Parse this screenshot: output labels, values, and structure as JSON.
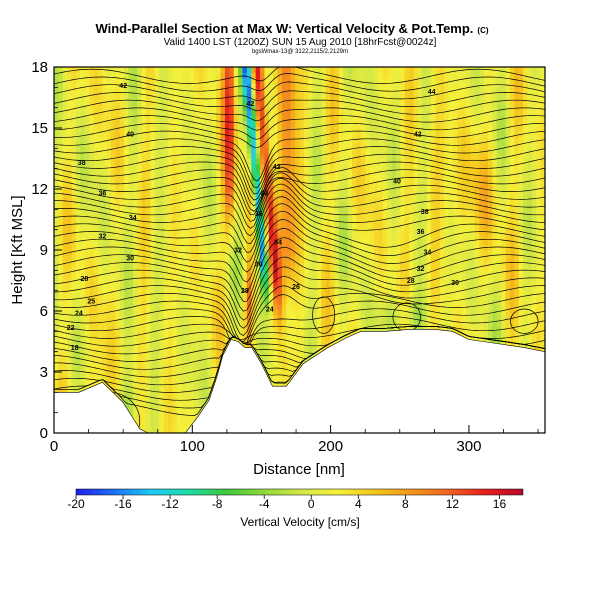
{
  "chart_data": {
    "type": "heatmap",
    "title": "Wind-Parallel Section at Max W: Vertical Velocity & Pot.Temp.",
    "title_mark": "(C)",
    "subtitle": "Valid 1400 LST (1200Z) SUN 15 Aug 2010 [18hrFcst@0024z]",
    "subtitle2": "bgsWmax-13@ 3122,2115/2,2129m",
    "xlabel": "Distance [nm]",
    "ylabel": "Height [Kft MSL]",
    "xlim": [
      0,
      355
    ],
    "ylim": [
      0,
      18
    ],
    "x_ticks": [
      "0",
      "100",
      "200",
      "300"
    ],
    "x_tick_values": [
      0,
      100,
      200,
      300
    ],
    "y_ticks": [
      "0",
      "3",
      "6",
      "9",
      "12",
      "15",
      "18"
    ],
    "y_tick_values": [
      0,
      3,
      6,
      9,
      12,
      15,
      18
    ],
    "colorbar": {
      "label": "Vertical Velocity [cm/s]",
      "min": -20,
      "max": 18,
      "tick_labels": [
        "-20",
        "-16",
        "-12",
        "-8",
        "-4",
        "0",
        "4",
        "8",
        "12",
        "16"
      ],
      "tick_values": [
        -20,
        -16,
        -12,
        -8,
        -4,
        0,
        4,
        8,
        12,
        16
      ],
      "colors": [
        "#1e1ee6",
        "#1e6ef5",
        "#1ec8f5",
        "#1edcaa",
        "#3cc83c",
        "#8cd73c",
        "#d2e646",
        "#f5f03c",
        "#f5c81e",
        "#f5961e",
        "#f0641e",
        "#e61e1e",
        "#b40a2d"
      ]
    },
    "terrain_kft": [
      [
        0,
        2
      ],
      [
        18,
        2
      ],
      [
        35,
        2.5
      ],
      [
        50,
        1.5
      ],
      [
        62,
        0.2
      ],
      [
        68,
        0
      ],
      [
        95,
        0
      ],
      [
        104,
        0.8
      ],
      [
        112,
        1.6
      ],
      [
        118,
        2.8
      ],
      [
        122,
        3.8
      ],
      [
        128,
        4.6
      ],
      [
        133,
        4.5
      ],
      [
        138,
        4.2
      ],
      [
        143,
        4.2
      ],
      [
        150,
        3.4
      ],
      [
        158,
        2.3
      ],
      [
        168,
        2.3
      ],
      [
        180,
        3.4
      ],
      [
        198,
        4.2
      ],
      [
        212,
        4.7
      ],
      [
        222,
        5.0
      ],
      [
        240,
        5.0
      ],
      [
        258,
        5.1
      ],
      [
        275,
        5.1
      ],
      [
        288,
        5.0
      ],
      [
        300,
        4.6
      ],
      [
        320,
        4.4
      ],
      [
        340,
        4.2
      ],
      [
        355,
        4.0
      ]
    ],
    "theta_contours": [
      {
        "label": "18",
        "x": 15,
        "y": 4.2
      },
      {
        "label": "22",
        "x": 12,
        "y": 5.2
      },
      {
        "label": "24",
        "x": 18,
        "y": 5.9
      },
      {
        "label": "25",
        "x": 27,
        "y": 6.5
      },
      {
        "label": "28",
        "x": 22,
        "y": 7.6
      },
      {
        "label": "30",
        "x": 55,
        "y": 8.6
      },
      {
        "label": "32",
        "x": 35,
        "y": 9.7
      },
      {
        "label": "34",
        "x": 57,
        "y": 10.6
      },
      {
        "label": "36",
        "x": 35,
        "y": 11.8
      },
      {
        "label": "38",
        "x": 20,
        "y": 13.3
      },
      {
        "label": "40",
        "x": 55,
        "y": 14.7
      },
      {
        "label": "42",
        "x": 50,
        "y": 17.1
      },
      {
        "label": "42",
        "x": 142,
        "y": 16.2
      },
      {
        "label": "42",
        "x": 161,
        "y": 13.1
      },
      {
        "label": "40",
        "x": 152,
        "y": 11.8
      },
      {
        "label": "36",
        "x": 148,
        "y": 10.8
      },
      {
        "label": "34",
        "x": 162,
        "y": 9.4
      },
      {
        "label": "32",
        "x": 133,
        "y": 9.0
      },
      {
        "label": "30",
        "x": 148,
        "y": 8.3
      },
      {
        "label": "28",
        "x": 138,
        "y": 7.0
      },
      {
        "label": "26",
        "x": 175,
        "y": 7.2
      },
      {
        "label": "24",
        "x": 156,
        "y": 6.1
      },
      {
        "label": "44",
        "x": 273,
        "y": 16.8
      },
      {
        "label": "42",
        "x": 263,
        "y": 14.7
      },
      {
        "label": "40",
        "x": 248,
        "y": 12.4
      },
      {
        "label": "38",
        "x": 268,
        "y": 10.9
      },
      {
        "label": "36",
        "x": 265,
        "y": 9.9
      },
      {
        "label": "34",
        "x": 270,
        "y": 8.9
      },
      {
        "label": "32",
        "x": 265,
        "y": 8.1
      },
      {
        "label": "30",
        "x": 290,
        "y": 7.4
      },
      {
        "label": "28",
        "x": 258,
        "y": 7.5
      }
    ]
  }
}
